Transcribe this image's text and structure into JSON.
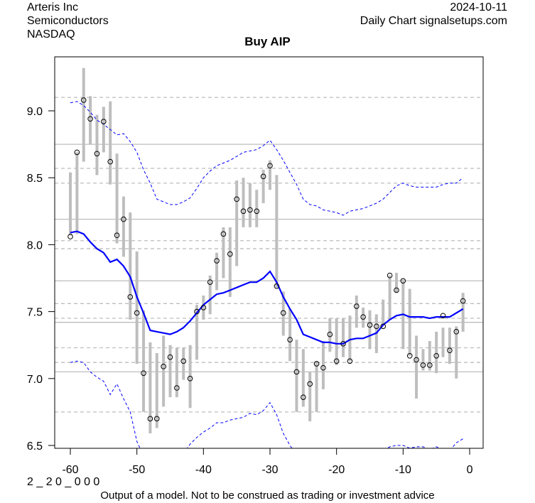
{
  "header": {
    "company": "Arteris Inc",
    "sector": "Semiconductors",
    "exchange": "NASDAQ",
    "date": "2024-10-11",
    "source": "Daily Chart signalsetups.com"
  },
  "footer": {
    "code": "2 _ 2 0 _ 0 0 0",
    "disclaimer": "Output of a model. Not to be construed as trading or investment advice"
  },
  "chart_data": {
    "type": "line",
    "title": "Buy AIP",
    "xlabel": "",
    "ylabel": "",
    "xlim": [
      -62,
      2
    ],
    "ylim": [
      6.48,
      9.42
    ],
    "x_ticks": [
      "-60",
      "-50",
      "-40",
      "-30",
      "-20",
      "-10",
      "0"
    ],
    "y_ticks": [
      "6.5",
      "7.0",
      "7.5",
      "8.0",
      "8.5",
      "9.0"
    ],
    "grid": false,
    "colors": {
      "bars": "#bebebe",
      "ma": "#0000ff",
      "bands": "#0000ff",
      "solid_levels": "#bebebe",
      "dashed_levels": "#bebebe"
    },
    "solid_levels": [
      8.75,
      8.19,
      7.73,
      7.42,
      7.05
    ],
    "dashed_levels": [
      9.1,
      8.57,
      8.46,
      8.03,
      7.97,
      7.56,
      7.45,
      7.23,
      7.12,
      6.75
    ],
    "x": [
      -60,
      -59,
      -58,
      -57,
      -56,
      -55,
      -54,
      -53,
      -52,
      -51,
      -50,
      -49,
      -48,
      -47,
      -46,
      -45,
      -44,
      -43,
      -42,
      -41,
      -40,
      -39,
      -38,
      -37,
      -36,
      -35,
      -34,
      -33,
      -32,
      -31,
      -30,
      -29,
      -28,
      -27,
      -26,
      -25,
      -24,
      -23,
      -22,
      -21,
      -20,
      -19,
      -18,
      -17,
      -16,
      -15,
      -14,
      -13,
      -12,
      -11,
      -10,
      -9,
      -8,
      -7,
      -6,
      -5,
      -4,
      -3,
      -2,
      -1
    ],
    "close": [
      8.06,
      8.69,
      9.08,
      8.94,
      8.68,
      8.92,
      8.62,
      8.07,
      8.19,
      7.61,
      7.49,
      7.04,
      6.7,
      6.7,
      7.09,
      7.16,
      6.93,
      7.13,
      7.0,
      7.5,
      7.53,
      7.72,
      7.88,
      8.08,
      7.93,
      8.34,
      8.25,
      8.26,
      8.25,
      8.51,
      8.59,
      7.69,
      7.49,
      7.29,
      7.05,
      6.86,
      6.96,
      7.11,
      7.08,
      7.33,
      7.13,
      7.26,
      7.13,
      7.54,
      7.46,
      7.4,
      7.39,
      7.39,
      7.77,
      7.66,
      7.73,
      7.17,
      7.14,
      7.1,
      7.1,
      7.17,
      7.47,
      7.21,
      7.35,
      7.58
    ],
    "high": [
      8.54,
      8.69,
      9.32,
      9.11,
      8.97,
      9.03,
      9.07,
      8.68,
      8.36,
      8.24,
      7.95,
      7.51,
      7.27,
      7.19,
      7.32,
      7.25,
      7.23,
      7.23,
      7.25,
      7.55,
      7.62,
      7.77,
      7.94,
      8.13,
      8.13,
      8.48,
      8.5,
      8.46,
      8.41,
      8.56,
      8.63,
      8.52,
      7.65,
      7.52,
      7.29,
      7.22,
      7.05,
      7.13,
      7.28,
      7.45,
      7.45,
      7.45,
      7.47,
      7.62,
      7.53,
      7.51,
      7.48,
      7.59,
      7.77,
      7.79,
      7.74,
      7.67,
      7.32,
      7.22,
      7.28,
      7.35,
      7.38,
      7.38,
      7.39,
      7.64
    ],
    "low": [
      8.07,
      8.08,
      8.62,
      8.75,
      8.52,
      8.69,
      8.45,
      8.01,
      7.91,
      7.44,
      7.11,
      6.75,
      6.59,
      6.63,
      6.79,
      6.86,
      6.86,
      6.99,
      6.78,
      7.14,
      7.44,
      7.48,
      7.66,
      7.75,
      7.61,
      7.84,
      8.13,
      8.13,
      8.13,
      8.31,
      8.41,
      7.68,
      7.32,
      7.13,
      6.75,
      6.79,
      6.68,
      6.75,
      6.92,
      7.2,
      7.1,
      7.16,
      7.13,
      7.38,
      7.38,
      7.22,
      7.19,
      7.4,
      7.44,
      7.64,
      7.22,
      7.17,
      6.85,
      7.06,
      7.06,
      7.04,
      7.16,
      7.11,
      7.0,
      7.35
    ],
    "series": [
      {
        "role": "moving-average",
        "values": [
          8.09,
          8.1,
          8.08,
          8.02,
          7.97,
          7.94,
          7.87,
          7.89,
          7.84,
          7.76,
          7.61,
          7.49,
          7.36,
          7.35,
          7.34,
          7.33,
          7.35,
          7.38,
          7.43,
          7.49,
          7.55,
          7.59,
          7.63,
          7.64,
          7.66,
          7.68,
          7.7,
          7.72,
          7.72,
          7.75,
          7.8,
          7.72,
          7.61,
          7.52,
          7.44,
          7.33,
          7.31,
          7.29,
          7.27,
          7.27,
          7.26,
          7.26,
          7.29,
          7.3,
          7.3,
          7.32,
          7.34,
          7.4,
          7.44,
          7.47,
          7.48,
          7.46,
          7.46,
          7.46,
          7.45,
          7.46,
          7.46,
          7.46,
          7.49,
          7.52
        ]
      },
      {
        "role": "upper-band",
        "values": [
          9.06,
          9.07,
          9.04,
          8.99,
          8.93,
          8.9,
          8.86,
          8.82,
          8.83,
          8.77,
          8.69,
          8.56,
          8.46,
          8.34,
          8.32,
          8.3,
          8.3,
          8.32,
          8.35,
          8.42,
          8.5,
          8.55,
          8.59,
          8.61,
          8.63,
          8.66,
          8.69,
          8.7,
          8.71,
          8.74,
          8.78,
          8.71,
          8.63,
          8.54,
          8.45,
          8.34,
          8.3,
          8.29,
          8.26,
          8.25,
          8.24,
          8.22,
          8.25,
          8.26,
          8.27,
          8.29,
          8.31,
          8.34,
          8.39,
          8.44,
          8.46,
          8.44,
          8.43,
          8.43,
          8.43,
          8.43,
          8.45,
          8.46,
          8.46,
          8.5
        ]
      },
      {
        "role": "lower-band",
        "values": [
          7.12,
          7.13,
          7.12,
          7.05,
          7.01,
          6.98,
          6.88,
          6.96,
          6.85,
          6.75,
          6.53,
          6.42,
          6.26,
          6.36,
          6.36,
          6.36,
          6.4,
          6.44,
          6.51,
          6.56,
          6.6,
          6.63,
          6.67,
          6.67,
          6.69,
          6.7,
          6.71,
          6.74,
          6.73,
          6.76,
          6.82,
          6.73,
          6.59,
          6.5,
          6.43,
          6.32,
          6.32,
          6.29,
          6.28,
          6.29,
          6.28,
          6.3,
          6.33,
          6.34,
          6.33,
          6.35,
          6.37,
          6.46,
          6.49,
          6.5,
          6.5,
          6.48,
          6.49,
          6.49,
          6.47,
          6.49,
          6.47,
          6.46,
          6.52,
          6.55
        ]
      }
    ]
  }
}
